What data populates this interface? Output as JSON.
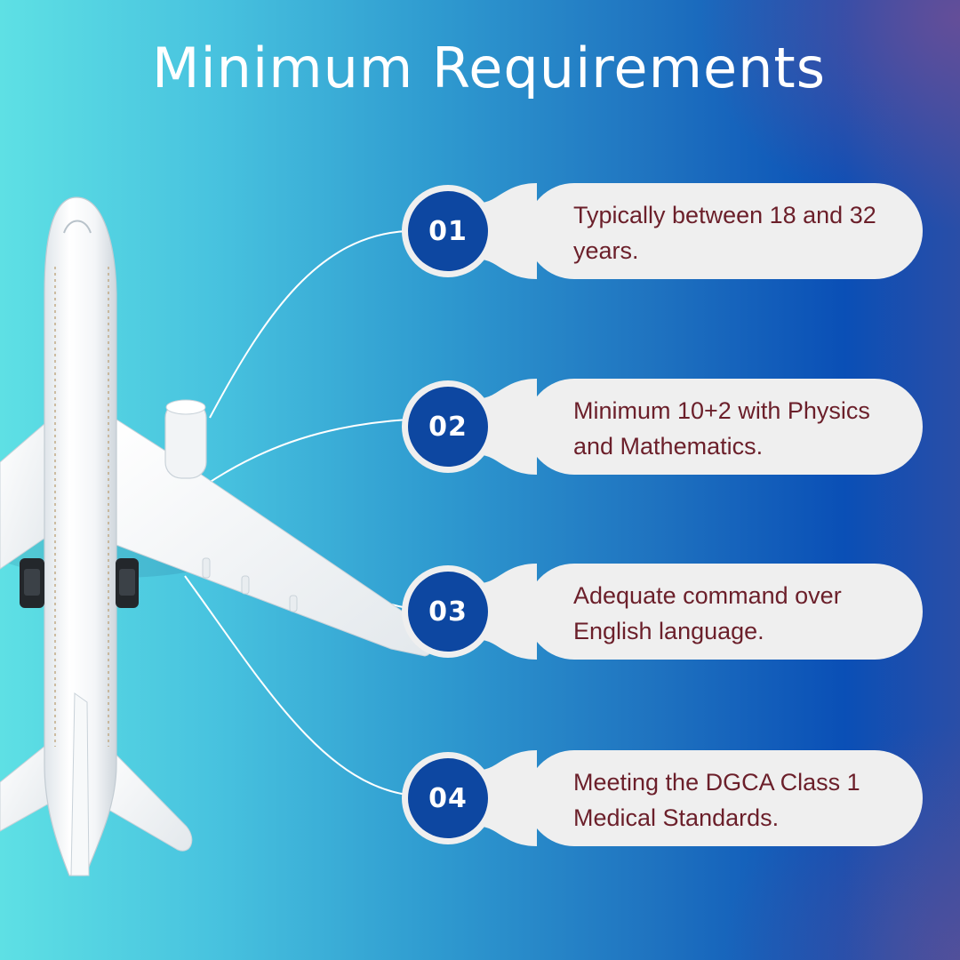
{
  "title": "Minimum Requirements",
  "requirements": [
    {
      "number": "01",
      "text": "Typically between 18 and 32 years."
    },
    {
      "number": "02",
      "text": "Minimum 10+2 with Physics and Mathematics."
    },
    {
      "number": "03",
      "text": "Adequate command over English language."
    },
    {
      "number": "04",
      "text": "Meeting the DGCA Class 1 Medical Standards."
    }
  ],
  "colors": {
    "badge": "#0d47a1",
    "card": "#efefef",
    "card_text": "#6b1f2a",
    "title": "#ffffff"
  },
  "icons": [
    "airplane-illustration"
  ]
}
